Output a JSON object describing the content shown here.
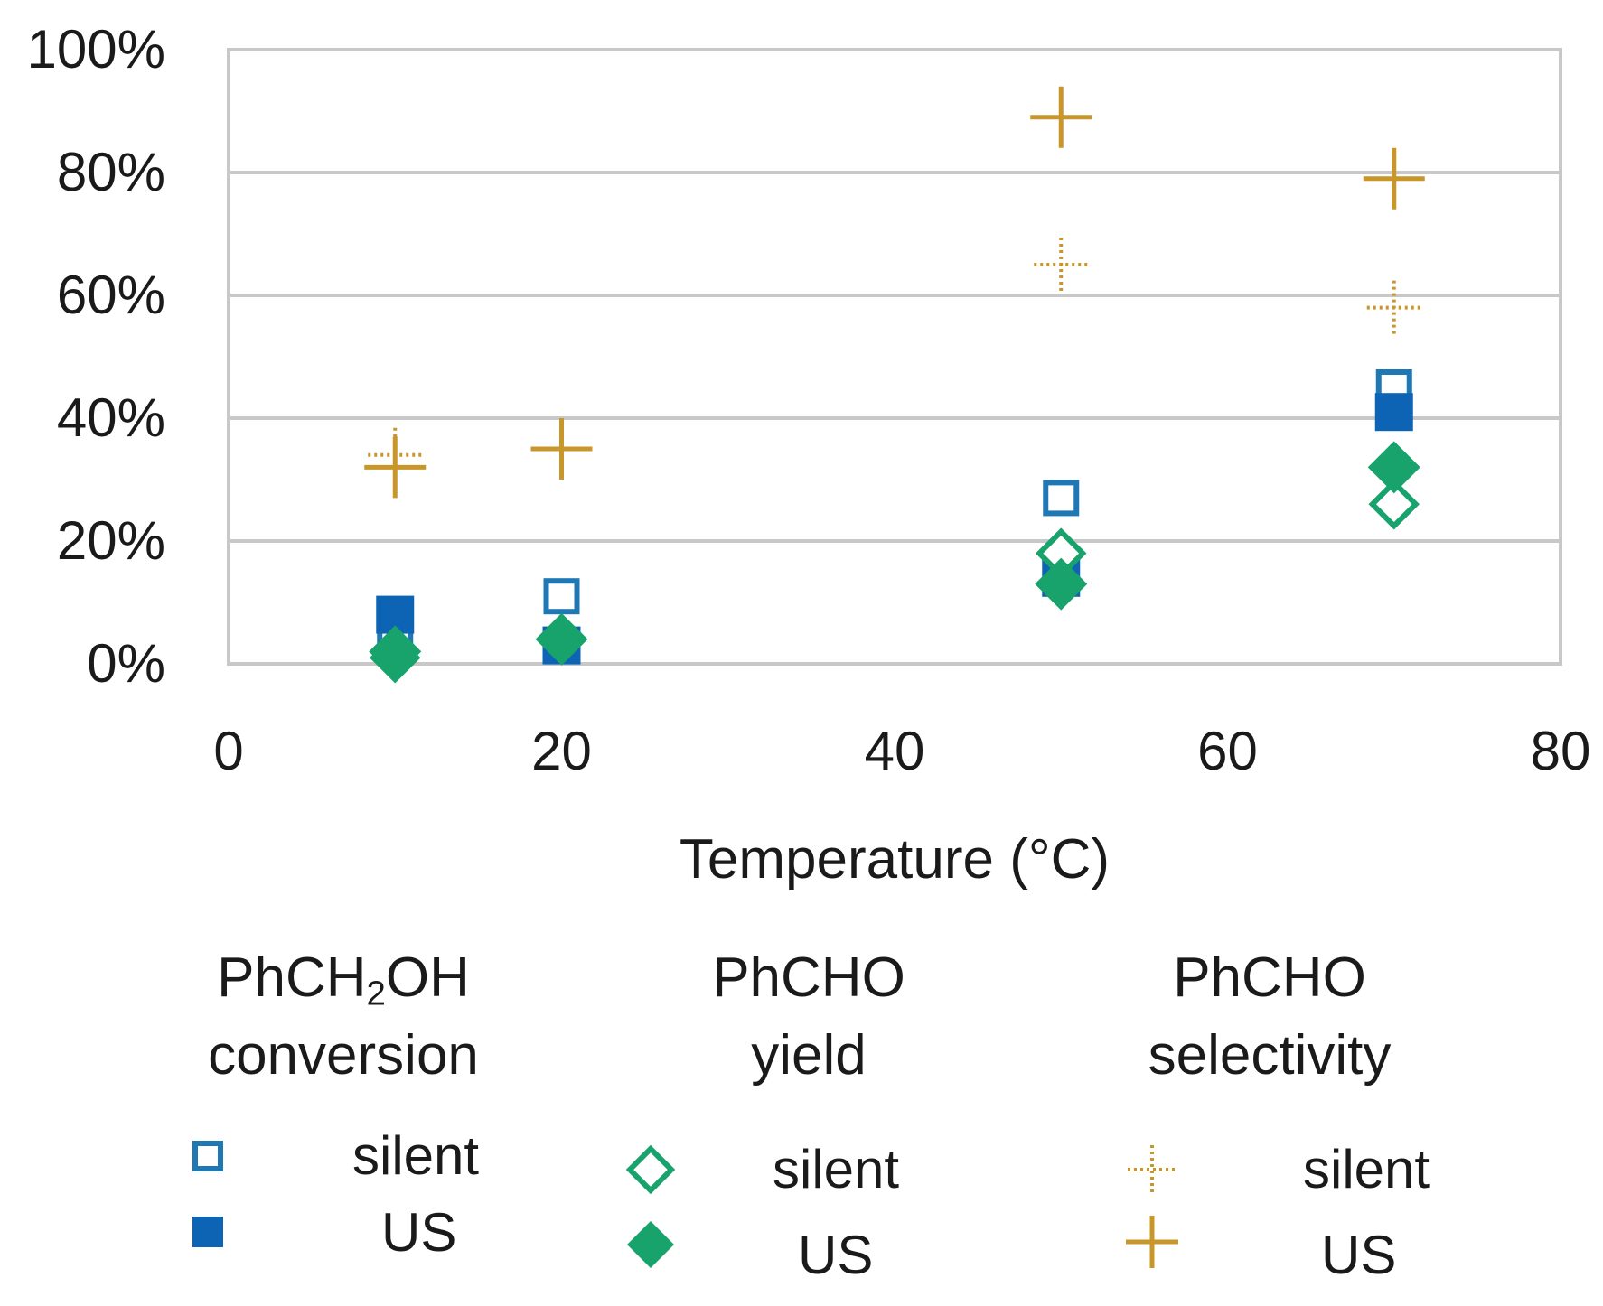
{
  "chart_data": {
    "type": "scatter",
    "title": "",
    "xlabel": "Temperature (°C)",
    "ylabel": "",
    "xlim": [
      0,
      80
    ],
    "ylim": [
      0,
      100
    ],
    "x_ticks": [
      "0",
      "20",
      "40",
      "60",
      "80"
    ],
    "y_ticks": [
      "0%",
      "20%",
      "40%",
      "60%",
      "80%",
      "100%"
    ],
    "grid": "horizontal",
    "legend_position": "bottom",
    "series": [
      {
        "name": "PhCH2OH conversion silent",
        "group": "conversion",
        "marker": "open-square",
        "color": "#1f77b4",
        "x": [
          10,
          20,
          50,
          70
        ],
        "y": [
          3,
          11,
          27,
          45
        ]
      },
      {
        "name": "PhCH2OH conversion US",
        "group": "conversion",
        "marker": "filled-square",
        "color": "#0e64b4",
        "x": [
          10,
          20,
          50,
          70
        ],
        "y": [
          8,
          3,
          14,
          41
        ]
      },
      {
        "name": "PhCHO yield silent",
        "group": "yield",
        "marker": "open-diamond",
        "color": "#17a36b",
        "x": [
          10,
          20,
          50,
          70
        ],
        "y": [
          1,
          4,
          18,
          26
        ]
      },
      {
        "name": "PhCHO yield US",
        "group": "yield",
        "marker": "filled-diamond",
        "color": "#17a36b",
        "x": [
          10,
          20,
          50,
          70
        ],
        "y": [
          2,
          4,
          13,
          32
        ]
      },
      {
        "name": "PhCHO selectivity silent",
        "group": "selectivity",
        "marker": "dotted-plus",
        "color": "#c9962a",
        "x": [
          10,
          20,
          50,
          70
        ],
        "y": [
          34,
          35,
          65,
          58
        ]
      },
      {
        "name": "PhCHO selectivity US",
        "group": "selectivity",
        "marker": "plus",
        "color": "#c9962a",
        "x": [
          10,
          20,
          50,
          70
        ],
        "y": [
          32,
          35,
          89,
          79
        ]
      }
    ]
  },
  "legend": {
    "groups": [
      {
        "title_main": "PhCH",
        "title_sub": "2",
        "title_rest": "OH",
        "title_line2": "conversion",
        "silent_label": "silent",
        "us_label": "US"
      },
      {
        "title_main": "PhCHO",
        "title_sub": "",
        "title_rest": "",
        "title_line2": "yield",
        "silent_label": "silent",
        "us_label": "US"
      },
      {
        "title_main": "PhCHO",
        "title_sub": "",
        "title_rest": "",
        "title_line2": "selectivity",
        "silent_label": "silent",
        "us_label": "US"
      }
    ]
  }
}
